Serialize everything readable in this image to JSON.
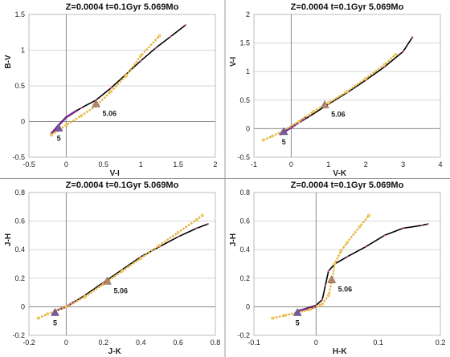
{
  "colors": {
    "model_line": "#000000",
    "early_track": "#7a2a8a",
    "observed_curve": "#e3b33a",
    "marker_5": "#7a5a9e",
    "marker_506": "#b9855a"
  },
  "chart_data": [
    {
      "type": "line",
      "title": "Z=0.0004  t=0.1Gyr  5.069Mo",
      "xlabel": "V-I",
      "ylabel": "B-V",
      "xlim": [
        -0.5,
        2
      ],
      "ylim": [
        -0.5,
        1.5
      ],
      "xticks": [
        -0.5,
        0,
        0.5,
        1,
        1.5,
        2
      ],
      "xtick_labels": [
        "-0.5",
        "0",
        "0.5",
        "1",
        "1.5",
        "2"
      ],
      "yticks": [
        -0.5,
        0,
        0.5,
        1,
        1.5
      ],
      "ytick_labels": [
        "-0.5",
        "0",
        "0.5",
        "1",
        "1.5"
      ],
      "grid": true,
      "series": [
        {
          "role": "model",
          "x": [
            -0.2,
            -0.1,
            0.0,
            0.2,
            0.4,
            0.6,
            0.8,
            1.0,
            1.2,
            1.4,
            1.6
          ],
          "y": [
            -0.17,
            -0.05,
            0.06,
            0.19,
            0.3,
            0.47,
            0.66,
            0.85,
            1.03,
            1.19,
            1.35
          ]
        },
        {
          "role": "early",
          "x": [
            -0.2,
            -0.1,
            0.0,
            0.15
          ],
          "y": [
            -0.17,
            -0.05,
            0.06,
            0.16
          ]
        },
        {
          "role": "observed",
          "x": [
            -0.2,
            -0.1,
            0.0,
            0.2,
            0.4,
            0.6,
            0.8,
            1.0,
            1.25
          ],
          "y": [
            -0.19,
            -0.12,
            -0.05,
            0.08,
            0.22,
            0.42,
            0.64,
            0.92,
            1.2
          ]
        }
      ],
      "markers": [
        {
          "label": "5",
          "x": -0.1,
          "y": -0.09,
          "shape": "triangle",
          "role": "marker_5"
        },
        {
          "label": "5.06",
          "x": 0.4,
          "y": 0.25,
          "shape": "triangle",
          "role": "marker_506"
        }
      ]
    },
    {
      "type": "line",
      "title": "Z=0.0004  t=0.1Gyr  5.069Mo",
      "xlabel": "V-K",
      "ylabel": "V-I",
      "xlim": [
        -1,
        4
      ],
      "ylim": [
        -0.5,
        2
      ],
      "xticks": [
        -1,
        0,
        1,
        2,
        3,
        4
      ],
      "xtick_labels": [
        "-1",
        "0",
        "1",
        "2",
        "3",
        "4"
      ],
      "yticks": [
        -0.5,
        0,
        0.5,
        1,
        1.5,
        2
      ],
      "ytick_labels": [
        "-0.5",
        "0",
        "0.5",
        "1",
        "1.5",
        "2"
      ],
      "grid": true,
      "series": [
        {
          "role": "model",
          "x": [
            -0.3,
            0.0,
            0.5,
            1.0,
            1.5,
            2.0,
            2.5,
            3.0,
            3.25
          ],
          "y": [
            -0.1,
            0.02,
            0.22,
            0.43,
            0.63,
            0.85,
            1.08,
            1.35,
            1.6
          ]
        },
        {
          "role": "early",
          "x": [
            -0.3,
            0.0,
            0.4
          ],
          "y": [
            -0.1,
            0.02,
            0.2
          ]
        },
        {
          "role": "observed",
          "x": [
            -0.75,
            -0.5,
            -0.2,
            0.2,
            0.6,
            1.0,
            1.5,
            2.0,
            2.5,
            2.8
          ],
          "y": [
            -0.2,
            -0.13,
            -0.03,
            0.12,
            0.3,
            0.45,
            0.65,
            0.88,
            1.12,
            1.3
          ]
        }
      ],
      "markers": [
        {
          "label": "5",
          "x": -0.2,
          "y": -0.05,
          "shape": "triangle",
          "role": "marker_5"
        },
        {
          "label": "5.06",
          "x": 0.9,
          "y": 0.42,
          "shape": "triangle",
          "role": "marker_506"
        }
      ]
    },
    {
      "type": "line",
      "title": "Z=0.0004  t=0.1Gyr  5.069Mo",
      "xlabel": "J-K",
      "ylabel": "J-H",
      "xlim": [
        -0.2,
        0.8
      ],
      "ylim": [
        -0.2,
        0.8
      ],
      "xticks": [
        -0.2,
        0,
        0.2,
        0.4,
        0.6,
        0.8
      ],
      "xtick_labels": [
        "-0.2",
        "0",
        "0.2",
        "0.4",
        "0.6",
        "0.8"
      ],
      "yticks": [
        -0.2,
        0,
        0.2,
        0.4,
        0.6,
        0.8
      ],
      "ytick_labels": [
        "-0.2",
        "0",
        "0.2",
        "0.4",
        "0.6",
        "0.8"
      ],
      "grid": true,
      "series": [
        {
          "role": "model",
          "x": [
            -0.06,
            0.0,
            0.1,
            0.2,
            0.3,
            0.4,
            0.5,
            0.6,
            0.7,
            0.76
          ],
          "y": [
            -0.03,
            0.0,
            0.08,
            0.17,
            0.26,
            0.35,
            0.42,
            0.49,
            0.55,
            0.58
          ]
        },
        {
          "role": "early",
          "x": [
            -0.06,
            0.0,
            0.05
          ],
          "y": [
            -0.03,
            0.0,
            0.04
          ]
        },
        {
          "role": "observed",
          "x": [
            -0.15,
            -0.1,
            0.0,
            0.1,
            0.2,
            0.3,
            0.4,
            0.5,
            0.6,
            0.7,
            0.73
          ],
          "y": [
            -0.08,
            -0.05,
            0.0,
            0.07,
            0.16,
            0.25,
            0.34,
            0.43,
            0.52,
            0.61,
            0.64
          ]
        }
      ],
      "markers": [
        {
          "label": "5",
          "x": -0.06,
          "y": -0.04,
          "shape": "triangle",
          "role": "marker_5"
        },
        {
          "label": "5.06",
          "x": 0.22,
          "y": 0.18,
          "shape": "triangle",
          "role": "marker_506"
        }
      ]
    },
    {
      "type": "line",
      "title": "Z=0.0004  t=0.1Gyr  5.069Mo",
      "xlabel": "H-K",
      "ylabel": "J-H",
      "xlim": [
        -0.1,
        0.2
      ],
      "ylim": [
        -0.2,
        0.8
      ],
      "xticks": [
        -0.1,
        -0.05,
        0,
        0.05,
        0.1,
        0.15,
        0.2
      ],
      "xtick_labels": [
        "-0.1",
        "",
        "0",
        "",
        "0.1",
        "",
        "0.2"
      ],
      "yticks": [
        -0.2,
        0,
        0.2,
        0.4,
        0.6,
        0.8
      ],
      "ytick_labels": [
        "-0.2",
        "0",
        "0.2",
        "0.4",
        "0.6",
        "0.8"
      ],
      "grid": true,
      "series": [
        {
          "role": "model",
          "x": [
            -0.03,
            0.0,
            0.01,
            0.015,
            0.02,
            0.03,
            0.05,
            0.08,
            0.11,
            0.14,
            0.17,
            0.18
          ],
          "y": [
            -0.03,
            0.01,
            0.05,
            0.15,
            0.25,
            0.3,
            0.35,
            0.42,
            0.5,
            0.55,
            0.57,
            0.58
          ]
        },
        {
          "role": "early",
          "x": [
            -0.03,
            0.0
          ],
          "y": [
            -0.03,
            0.0
          ]
        },
        {
          "role": "observed",
          "x": [
            -0.07,
            -0.05,
            -0.03,
            -0.01,
            0.01,
            0.02,
            0.025,
            0.03,
            0.04,
            0.05,
            0.07,
            0.085
          ],
          "y": [
            -0.08,
            -0.06,
            -0.04,
            -0.02,
            0.02,
            0.08,
            0.18,
            0.3,
            0.39,
            0.45,
            0.56,
            0.64
          ]
        }
      ],
      "markers": [
        {
          "label": "5",
          "x": -0.03,
          "y": -0.04,
          "shape": "triangle",
          "role": "marker_5"
        },
        {
          "label": "5.06",
          "x": 0.025,
          "y": 0.19,
          "shape": "triangle",
          "role": "marker_506"
        }
      ]
    }
  ]
}
